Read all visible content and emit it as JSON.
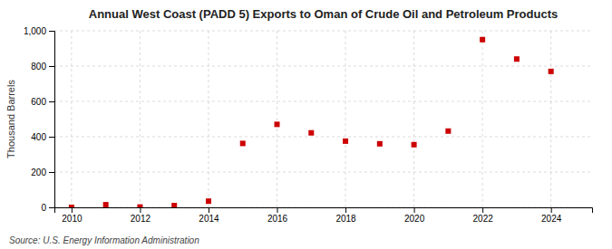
{
  "chart_data": {
    "type": "scatter",
    "title": "Annual West Coast (PADD 5) Exports to Oman of Crude Oil and Petroleum Products",
    "ylabel": "Thousand Barrels",
    "source": "Source: U.S. Energy Information Administration",
    "x": [
      2010,
      2011,
      2012,
      2013,
      2014,
      2015,
      2016,
      2017,
      2018,
      2019,
      2020,
      2021,
      2022,
      2023,
      2024
    ],
    "values": [
      0,
      15,
      2,
      10,
      35,
      362,
      470,
      422,
      375,
      360,
      355,
      432,
      950,
      840,
      770
    ],
    "color": "#cc0000",
    "marker": "square",
    "xlim": [
      2009.5,
      2025.2
    ],
    "xticks": [
      2010,
      2012,
      2014,
      2016,
      2018,
      2020,
      2022,
      2024
    ],
    "ylim": [
      0,
      1000
    ],
    "yticks": [
      0,
      200,
      400,
      600,
      800,
      {
        "value": 1000,
        "label": "1,000"
      }
    ],
    "grid": true
  }
}
